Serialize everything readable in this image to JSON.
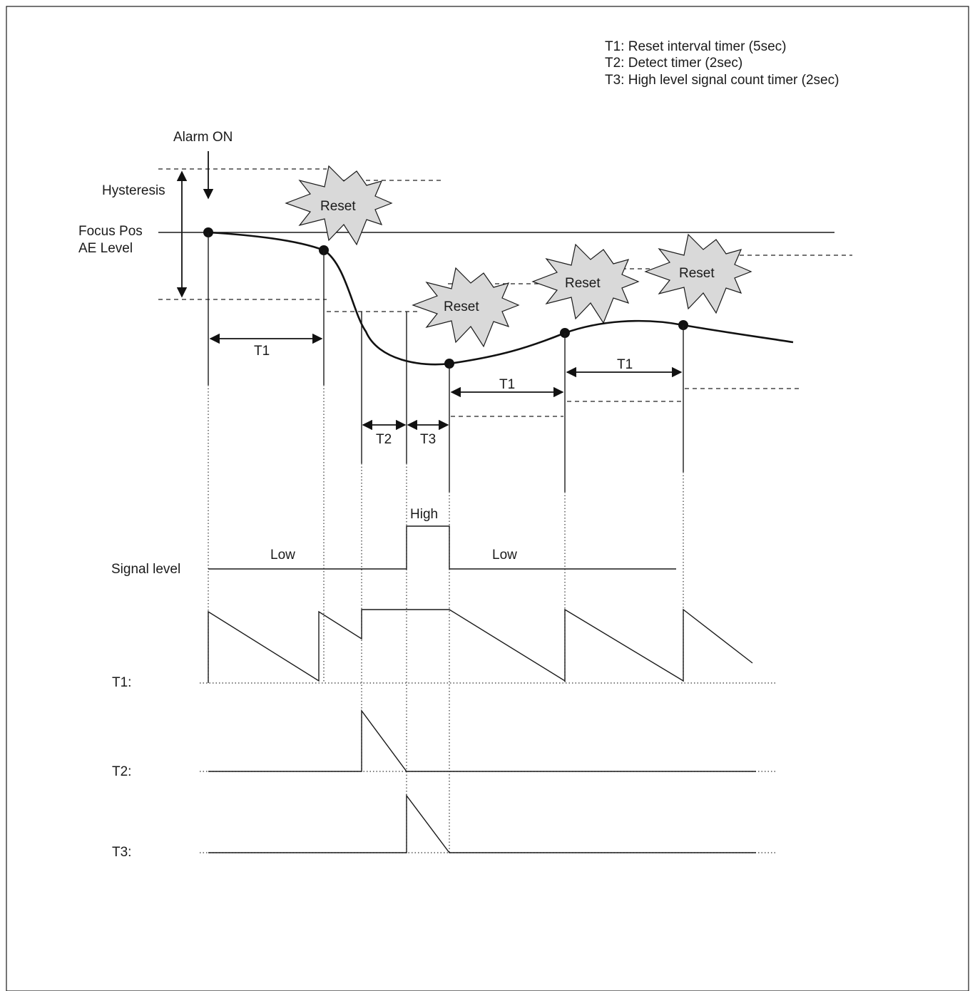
{
  "legend": {
    "t1": "T1: Reset interval timer (5sec)",
    "t2": "T2: Detect timer (2sec)",
    "t3": "T3: High level signal count timer (2sec)"
  },
  "labels": {
    "alarm_on": "Alarm ON",
    "hysteresis": "Hysteresis",
    "focus_pos": "Focus Pos",
    "ae_level": "AE Level",
    "reset": "Reset",
    "t1": "T1",
    "t2": "T2",
    "t3": "T3",
    "high": "High",
    "low": "Low",
    "signal_level": "Signal level",
    "row_t1": "T1:",
    "row_t2": "T2:",
    "row_t3": "T3:"
  },
  "colors": {
    "line": "#1a1a1a",
    "burst_fill": "#d9d9d9",
    "background": "#ffffff"
  }
}
